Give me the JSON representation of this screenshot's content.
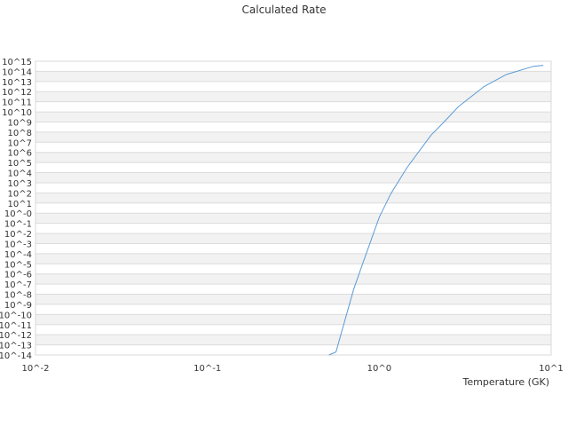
{
  "chart_data": {
    "type": "line",
    "title": "Calculated Rate",
    "xlabel": "Temperature (GK)",
    "ylabel": "",
    "x_scale": "log",
    "y_scale": "log",
    "xlim": [
      0.01,
      10
    ],
    "ylim": [
      1e-14,
      1000000000000000.0
    ],
    "x_tick_labels": [
      "10^-2",
      "10^-1",
      "10^0",
      "10^1"
    ],
    "y_tick_labels": [
      "10^15",
      "10^14",
      "10^13",
      "10^12",
      "10^11",
      "10^10",
      "10^9",
      "10^8",
      "10^7",
      "10^6",
      "10^5",
      "10^4",
      "10^3",
      "10^2",
      "10^1",
      "10^-0",
      "10^-1",
      "10^-2",
      "10^-3",
      "10^-4",
      "10^-5",
      "10^-6",
      "10^-7",
      "10^-8",
      "10^-9",
      "10^-10",
      "10^-11",
      "10^-12",
      "10^-13",
      "10^-14"
    ],
    "grid": true,
    "legend": "none",
    "line_color": "#5b9bd5",
    "series": [
      {
        "x": [
          0.51,
          0.56,
          0.71,
          0.8,
          1.0,
          1.17,
          1.45,
          2.0,
          2.38,
          2.88,
          4.07,
          5.5,
          7.9,
          9.0
        ],
        "y_log10": [
          -14,
          -13.7,
          -7.5,
          -5,
          -0.4,
          1.95,
          4.5,
          7.7,
          9,
          10.5,
          12.5,
          13.7,
          14.5,
          14.6
        ]
      }
    ]
  }
}
